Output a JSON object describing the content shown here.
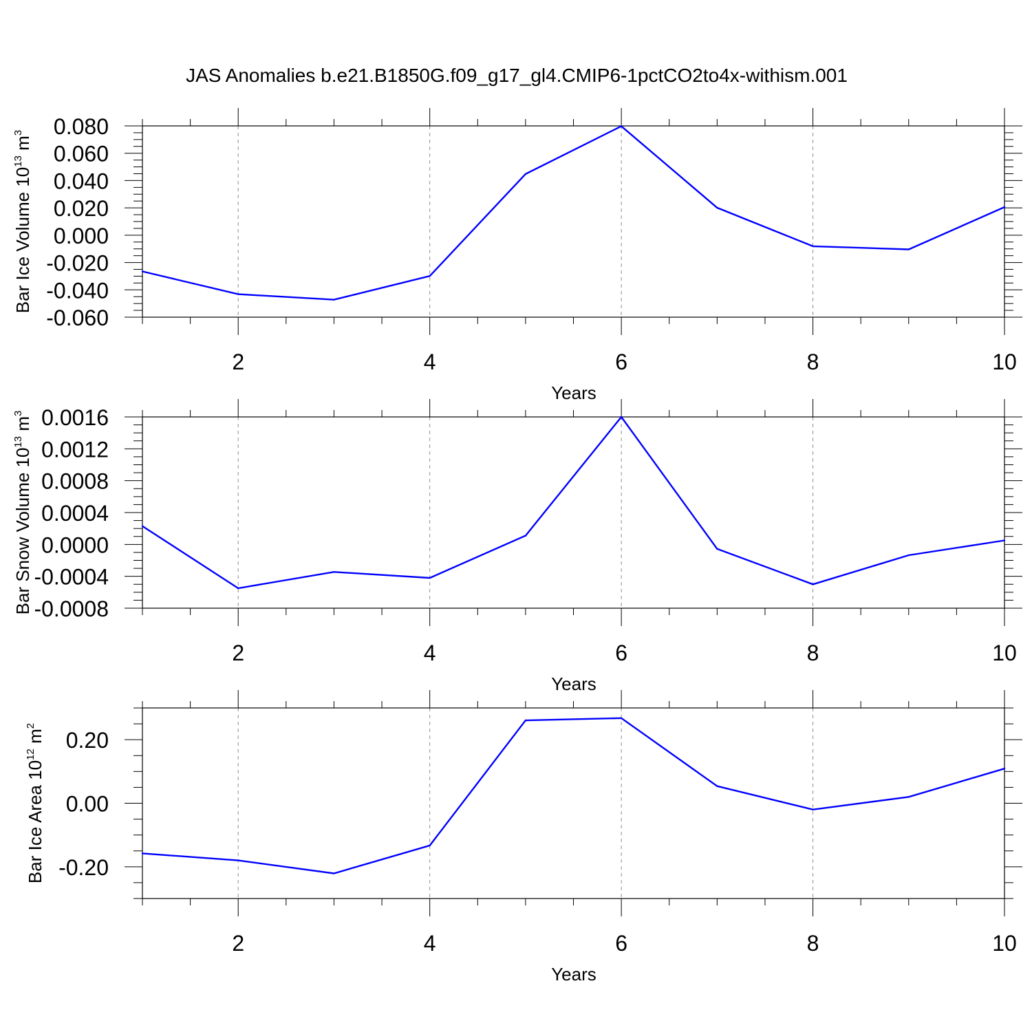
{
  "chart_data": {
    "type": "line",
    "title": "JAS Anomalies b.e21.B1850G.f09_g17_gl4.CMIP6-1pctCO2to4x-withism.001",
    "series_color": "#0000ff",
    "panels": [
      {
        "name": "ice-volume",
        "ylabel": {
          "main": "Bar Ice Volume 10",
          "exp": "13",
          "unit": " m",
          "unit_exp": "3"
        },
        "xlabel": "Years",
        "xlim": [
          1,
          10
        ],
        "ylim": [
          -0.06,
          0.08
        ],
        "yticks": [
          -0.06,
          -0.04,
          -0.02,
          0.0,
          0.02,
          0.04,
          0.06,
          0.08
        ],
        "ytick_labels": [
          "-0.060",
          "-0.040",
          "-0.020",
          "0.000",
          "0.020",
          "0.040",
          "0.060",
          "0.080"
        ],
        "yminor_step": 0.005,
        "xticks": [
          2,
          4,
          6,
          8,
          10
        ],
        "xtick_labels": [
          "2",
          "4",
          "6",
          "8",
          "10"
        ],
        "x": [
          1,
          2,
          3,
          4,
          5,
          6,
          7,
          8,
          9,
          10
        ],
        "values": [
          -0.0265,
          -0.0432,
          -0.0472,
          -0.0299,
          0.0448,
          0.0798,
          0.0201,
          -0.0081,
          -0.0104,
          0.0206
        ]
      },
      {
        "name": "snow-volume",
        "ylabel": {
          "main": "Bar Snow Volume 10",
          "exp": "13",
          "unit": " m",
          "unit_exp": "3"
        },
        "xlabel": "Years",
        "xlim": [
          1,
          10
        ],
        "ylim": [
          -0.0008,
          0.0016
        ],
        "yticks": [
          -0.0008,
          -0.0004,
          0.0,
          0.0004,
          0.0008,
          0.0012,
          0.0016
        ],
        "ytick_labels": [
          "-0.0008",
          "-0.0004",
          "0.0000",
          "0.0004",
          "0.0008",
          "0.0012",
          "0.0016"
        ],
        "yminor_step": 0.0001,
        "xticks": [
          2,
          4,
          6,
          8,
          10
        ],
        "xtick_labels": [
          "2",
          "4",
          "6",
          "8",
          "10"
        ],
        "x": [
          1,
          2,
          3,
          4,
          5,
          6,
          7,
          8,
          9,
          10
        ],
        "values": [
          0.00023,
          -0.00055,
          -0.000345,
          -0.00042,
          0.00011,
          0.0016,
          -5.5e-05,
          -0.0005,
          -0.000135,
          5e-05
        ]
      },
      {
        "name": "ice-area",
        "ylabel": {
          "main": "Bar Ice Area 10",
          "exp": "12",
          "unit": " m",
          "unit_exp": "2"
        },
        "xlabel": "Years",
        "xlim": [
          1,
          10
        ],
        "ylim": [
          -0.3,
          0.3
        ],
        "yticks": [
          -0.2,
          0.0,
          0.2
        ],
        "ytick_labels": [
          "-0.20",
          "0.00",
          "0.20"
        ],
        "yminor_step": 0.05,
        "xticks": [
          2,
          4,
          6,
          8,
          10
        ],
        "xtick_labels": [
          "2",
          "4",
          "6",
          "8",
          "10"
        ],
        "x": [
          1,
          2,
          3,
          4,
          5,
          6,
          7,
          8,
          9,
          10
        ],
        "values": [
          -0.158,
          -0.18,
          -0.221,
          -0.133,
          0.261,
          0.268,
          0.054,
          -0.02,
          0.02,
          0.109
        ]
      }
    ]
  }
}
